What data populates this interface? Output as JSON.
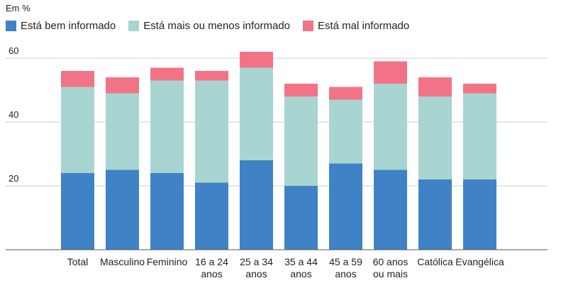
{
  "chart_data": {
    "type": "bar",
    "stacked": true,
    "unit_label": "Em %",
    "categories": [
      [
        "Total"
      ],
      [
        "Masculino"
      ],
      [
        "Feminino"
      ],
      [
        "16 a 24",
        "anos"
      ],
      [
        "25 a 34",
        "anos"
      ],
      [
        "35 a 44",
        "anos"
      ],
      [
        "45 a 59",
        "anos"
      ],
      [
        "60 anos",
        "ou mais"
      ],
      [
        "Católica"
      ],
      [
        "Evangélica"
      ]
    ],
    "series": [
      {
        "name": "Está bem informado",
        "color": "#3f83c6",
        "values": [
          24,
          25,
          24,
          21,
          28,
          20,
          27,
          25,
          22,
          22
        ]
      },
      {
        "name": "Está mais ou menos informado",
        "color": "#a8d5d1",
        "values": [
          27,
          24,
          29,
          32,
          29,
          28,
          20,
          27,
          26,
          27
        ]
      },
      {
        "name": "Está mal informado",
        "color": "#f27385",
        "values": [
          5,
          5,
          4,
          3,
          5,
          4,
          4,
          7,
          6,
          3
        ]
      }
    ],
    "ylim": [
      0,
      60
    ],
    "yticks": [
      20,
      40,
      60
    ],
    "grid": true,
    "legend_position": "top-left"
  }
}
